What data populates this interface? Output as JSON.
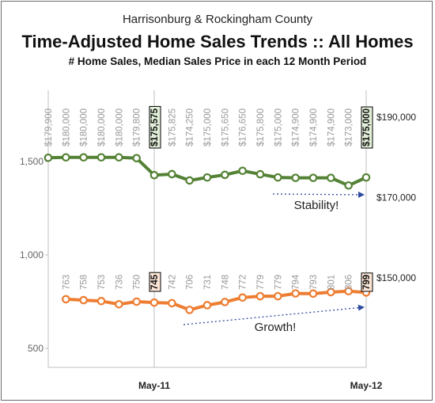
{
  "chart_data": {
    "type": "line",
    "title": "Harrisonburg & Rockingham County",
    "subtitle": "Time-Adjusted Home Sales Trends  ::  All Homes",
    "description": "# Home Sales, Median Sales Price in each 12 Month Period",
    "y_left_ticks": [
      "1,500",
      "1,000",
      "500"
    ],
    "y_right_ticks": [
      "$190,000",
      "$170,000",
      "$150,000"
    ],
    "x_tick_labels": [
      "May-11",
      "May-12"
    ],
    "series": [
      {
        "name": "price",
        "color": "#548235",
        "values": [
          179900,
          180000,
          180000,
          180000,
          180000,
          179800,
          175575,
          175825,
          174250,
          175000,
          175650,
          176650,
          175800,
          175000,
          174900,
          174900,
          174900,
          173000,
          175000
        ],
        "labels": [
          "$179,900",
          "$180,000",
          "$180,000",
          "$180,000",
          "$180,000",
          "$179,800",
          "$175,575",
          "$175,825",
          "$174,250",
          "$175,000",
          "$175,650",
          "$176,650",
          "$175,800",
          "$175,000",
          "$174,900",
          "$174,900",
          "$174,900",
          "$173,000",
          "$175,000"
        ],
        "highlighted": [
          6,
          18
        ],
        "highlight_fill": "#e2efd9"
      },
      {
        "name": "sales",
        "color": "#ed7d31",
        "values": [
          763,
          758,
          753,
          736,
          750,
          745,
          742,
          706,
          731,
          748,
          772,
          779,
          779,
          794,
          793,
          801,
          806,
          799
        ],
        "labels": [
          "763",
          "758",
          "753",
          "736",
          "750",
          "745",
          "742",
          "706",
          "731",
          "748",
          "772",
          "779",
          "779",
          "794",
          "793",
          "801",
          "806",
          "799"
        ],
        "highlighted": [
          5,
          17
        ],
        "highlight_fill": "#fbe5d6"
      }
    ],
    "annotations": [
      "Stability!",
      "Growth!"
    ],
    "arrow_color": "#2e4a9e"
  }
}
